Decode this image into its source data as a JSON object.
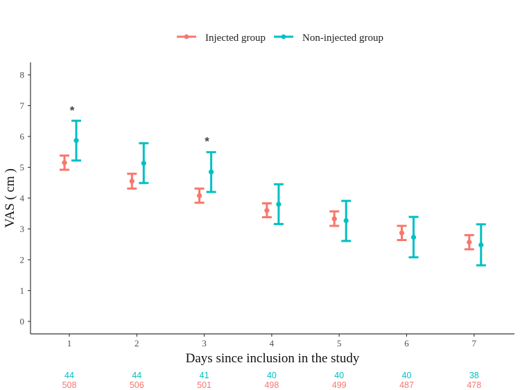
{
  "chart_data": {
    "type": "errorbar",
    "title": "",
    "xlabel": "Days since inclusion in the study",
    "ylabel": "VAS ( cm )",
    "ylim": [
      -0.35,
      8.35
    ],
    "yticks": [
      "0",
      "1",
      "2",
      "3",
      "4",
      "5",
      "6",
      "7",
      "8"
    ],
    "x": [
      "1",
      "2",
      "3",
      "4",
      "5",
      "6",
      "7"
    ],
    "legend_position": "top",
    "series": [
      {
        "name": "Injected group",
        "color": "#F8766D",
        "mean": [
          5.15,
          4.55,
          4.08,
          3.6,
          3.33,
          2.87,
          2.57
        ],
        "lower": [
          4.92,
          4.31,
          3.85,
          3.38,
          3.1,
          2.64,
          2.34
        ],
        "upper": [
          5.38,
          4.79,
          4.31,
          3.83,
          3.57,
          3.1,
          2.8
        ],
        "n_at_risk": [
          "508",
          "506",
          "501",
          "498",
          "499",
          "487",
          "478"
        ]
      },
      {
        "name": "Non-injected group",
        "color": "#00BFC4",
        "mean": [
          5.87,
          5.13,
          4.85,
          3.8,
          3.27,
          2.73,
          2.48
        ],
        "lower": [
          5.22,
          4.49,
          4.2,
          3.16,
          2.61,
          2.08,
          1.82
        ],
        "upper": [
          6.51,
          5.78,
          5.49,
          4.45,
          3.91,
          3.39,
          3.15
        ],
        "n_at_risk": [
          "44",
          "44",
          "41",
          "40",
          "40",
          "40",
          "38"
        ]
      }
    ],
    "annotations": [
      {
        "x": "1",
        "y": 6.85,
        "text": "*"
      },
      {
        "x": "3",
        "y": 5.85,
        "text": "*"
      }
    ]
  }
}
